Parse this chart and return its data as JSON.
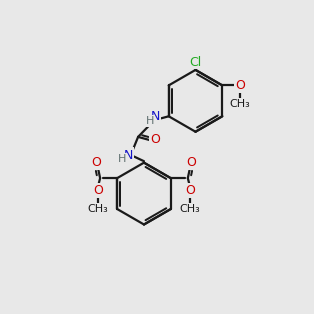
{
  "bg_color": "#e8e8e8",
  "bond_color": "#1a1a1a",
  "bond_width": 1.6,
  "atom_colors": {
    "C": "#1a1a1a",
    "N": "#1414c8",
    "O": "#cc0000",
    "Cl": "#22aa22",
    "H": "#607070"
  },
  "font_size": 8.5
}
